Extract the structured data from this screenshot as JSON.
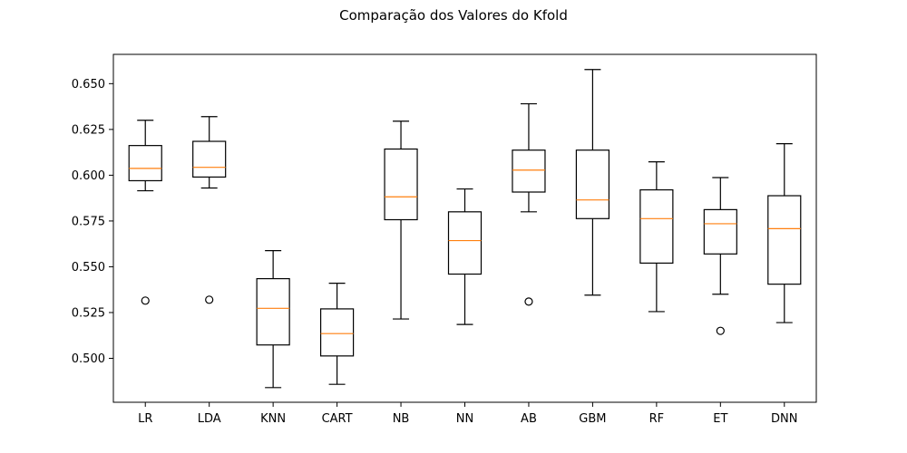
{
  "chart_data": {
    "type": "box",
    "title": "Comparação dos Valores do Kfold",
    "xlabel": "",
    "ylabel": "",
    "categories": [
      "LR",
      "LDA",
      "KNN",
      "CART",
      "NB",
      "NN",
      "AB",
      "GBM",
      "RF",
      "ET",
      "DNN"
    ],
    "boxes": [
      {
        "label": "LR",
        "whisker_low": 0.5915,
        "q1": 0.597,
        "median": 0.6037,
        "q3": 0.6162,
        "whisker_high": 0.63,
        "outliers": [
          0.5315
        ]
      },
      {
        "label": "LDA",
        "whisker_low": 0.593,
        "q1": 0.599,
        "median": 0.6043,
        "q3": 0.6185,
        "whisker_high": 0.632,
        "outliers": [
          0.532
        ]
      },
      {
        "label": "KNN",
        "whisker_low": 0.484,
        "q1": 0.5073,
        "median": 0.5273,
        "q3": 0.5435,
        "whisker_high": 0.5588,
        "outliers": []
      },
      {
        "label": "CART",
        "whisker_low": 0.4858,
        "q1": 0.5013,
        "median": 0.5135,
        "q3": 0.527,
        "whisker_high": 0.541,
        "outliers": []
      },
      {
        "label": "NB",
        "whisker_low": 0.5215,
        "q1": 0.5757,
        "median": 0.5882,
        "q3": 0.6143,
        "whisker_high": 0.6295,
        "outliers": []
      },
      {
        "label": "NN",
        "whisker_low": 0.5185,
        "q1": 0.546,
        "median": 0.5643,
        "q3": 0.58,
        "whisker_high": 0.5925,
        "outliers": []
      },
      {
        "label": "AB",
        "whisker_low": 0.58,
        "q1": 0.5908,
        "median": 0.6028,
        "q3": 0.6137,
        "whisker_high": 0.639,
        "outliers": [
          0.531
        ]
      },
      {
        "label": "GBM",
        "whisker_low": 0.5345,
        "q1": 0.5763,
        "median": 0.5865,
        "q3": 0.6137,
        "whisker_high": 0.6577,
        "outliers": []
      },
      {
        "label": "RF",
        "whisker_low": 0.5255,
        "q1": 0.552,
        "median": 0.5763,
        "q3": 0.592,
        "whisker_high": 0.6073,
        "outliers": []
      },
      {
        "label": "ET",
        "whisker_low": 0.535,
        "q1": 0.557,
        "median": 0.5735,
        "q3": 0.5812,
        "whisker_high": 0.5987,
        "outliers": [
          0.515
        ]
      },
      {
        "label": "DNN",
        "whisker_low": 0.5195,
        "q1": 0.5405,
        "median": 0.5708,
        "q3": 0.5888,
        "whisker_high": 0.6172,
        "outliers": []
      }
    ],
    "y_ticks": [
      0.5,
      0.525,
      0.55,
      0.575,
      0.6,
      0.625,
      0.65
    ],
    "y_tick_labels": [
      "0.500",
      "0.525",
      "0.550",
      "0.575",
      "0.600",
      "0.625",
      "0.650"
    ],
    "ylim": [
      0.476,
      0.666
    ],
    "grid": false,
    "legend": "none",
    "colors": {
      "box": "#000000",
      "median": "#ff7f0e",
      "axes": "#000000",
      "background": "#ffffff"
    }
  }
}
